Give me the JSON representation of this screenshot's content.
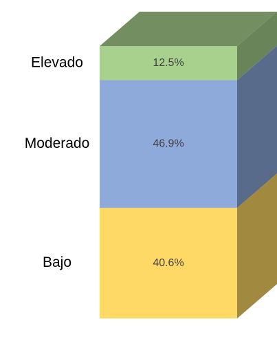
{
  "chart_data": {
    "type": "bar3d-stacked",
    "series": [
      {
        "name": "Bajo",
        "color": "#ffd966",
        "values": [
          40.6
        ],
        "value_labels": [
          "40.6%"
        ]
      },
      {
        "name": "Moderado",
        "color": "#8eaadb",
        "values": [
          46.9
        ],
        "value_labels": [
          "46.9%"
        ]
      },
      {
        "name": "Elevado",
        "color": "#a9d18e",
        "values": [
          12.5
        ],
        "value_labels": [
          "12.5%"
        ]
      }
    ]
  }
}
